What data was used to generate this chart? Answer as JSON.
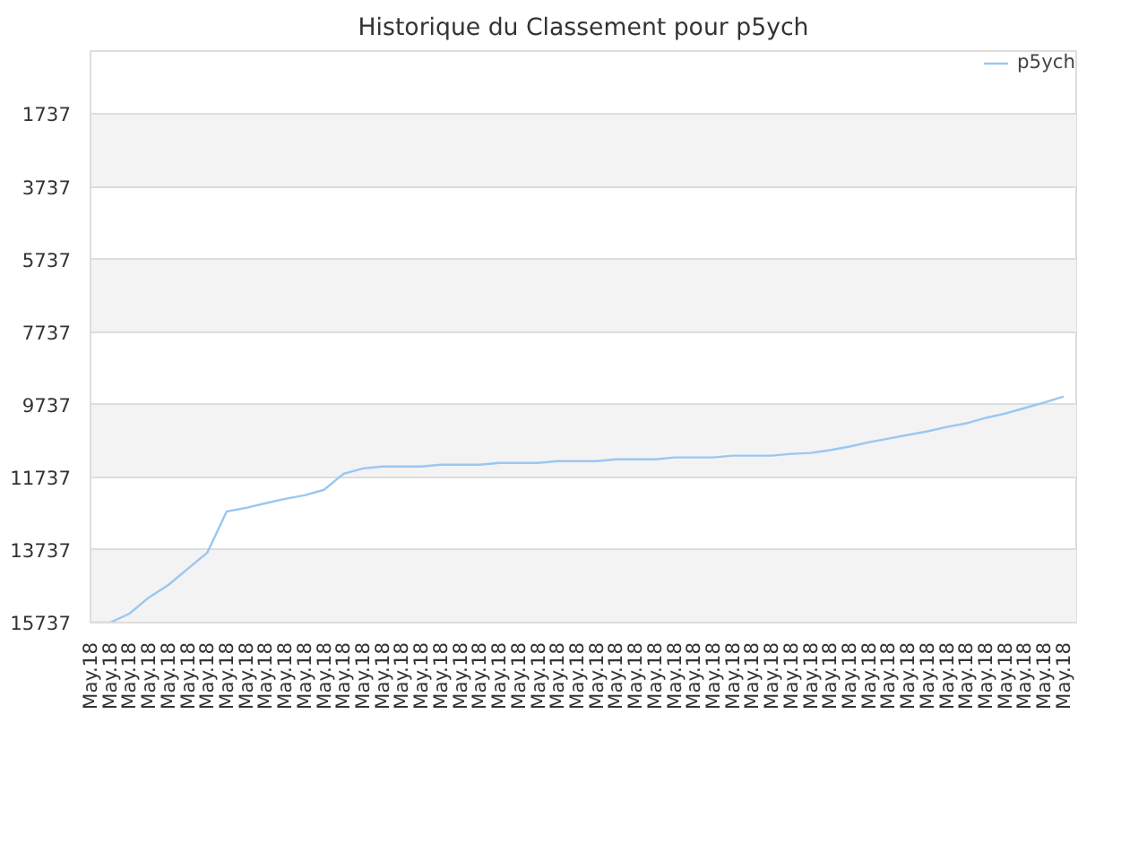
{
  "chart_data": {
    "type": "line",
    "title": "Historique du Classement pour p5ych",
    "categories": [
      "May.18",
      "May.18",
      "May.18",
      "May.18",
      "May.18",
      "May.18",
      "May.18",
      "May.18",
      "May.18",
      "May.18",
      "May.18",
      "May.18",
      "May.18",
      "May.18",
      "May.18",
      "May.18",
      "May.18",
      "May.18",
      "May.18",
      "May.18",
      "May.18",
      "May.18",
      "May.18",
      "May.18",
      "May.18",
      "May.18",
      "May.18",
      "May.18",
      "May.18",
      "May.18",
      "May.18",
      "May.18",
      "May.18",
      "May.18",
      "May.18",
      "May.18",
      "May.18",
      "May.18",
      "May.18",
      "May.18",
      "May.18",
      "May.18",
      "May.18",
      "May.18",
      "May.18",
      "May.18",
      "May.18",
      "May.18",
      "May.18",
      "May.18",
      "May.18"
    ],
    "series": [
      {
        "name": "p5ych",
        "color": "#99c7f2",
        "values": [
          15737,
          15737,
          15490,
          15045,
          14700,
          14255,
          13810,
          12675,
          12575,
          12450,
          12330,
          12230,
          12080,
          11640,
          11490,
          11440,
          11440,
          11440,
          11390,
          11390,
          11390,
          11340,
          11340,
          11340,
          11290,
          11290,
          11290,
          11240,
          11240,
          11240,
          11190,
          11190,
          11190,
          11140,
          11140,
          11140,
          11090,
          11065,
          10990,
          10890,
          10770,
          10670,
          10570,
          10470,
          10350,
          10250,
          10100,
          9980,
          9830,
          9680,
          9510
        ]
      }
    ],
    "ylim": [
      15737,
      0
    ],
    "yticks": [
      1737,
      3737,
      5737,
      7737,
      9737,
      11737,
      13737,
      15737
    ],
    "grid": "y",
    "legend": "top right",
    "marker": "none",
    "line_style": "solid"
  }
}
